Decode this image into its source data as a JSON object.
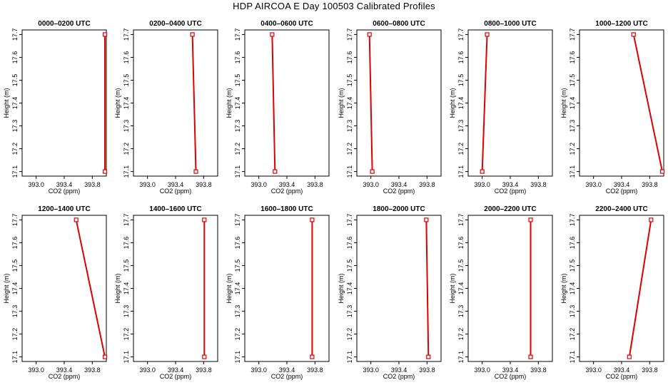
{
  "title": "HDP AIRCOA E  Day 100503  Calibrated Profiles",
  "colors": {
    "series": "#dd0000",
    "axis": "#000000"
  },
  "chart_data": [
    {
      "type": "line",
      "title": "0000–0200 UTC",
      "xlabel": "CO2 (ppm)",
      "ylabel": "Height (m)",
      "xlim": [
        392.8,
        394.0
      ],
      "ylim": [
        17.08,
        17.72
      ],
      "xticks": [
        "393.0",
        "393.4",
        "393.8"
      ],
      "yticks": [
        "17.1",
        "17.2",
        "17.3",
        "17.4",
        "17.5",
        "17.6",
        "17.7"
      ],
      "points": [
        {
          "x": 393.98,
          "y": 17.1
        },
        {
          "x": 393.98,
          "y": 17.7
        }
      ]
    },
    {
      "type": "line",
      "title": "0200–0400 UTC",
      "xlabel": "CO2 (ppm)",
      "ylabel": "Height (m)",
      "xlim": [
        392.8,
        394.0
      ],
      "ylim": [
        17.08,
        17.72
      ],
      "xticks": [
        "393.0",
        "393.4",
        "393.8"
      ],
      "yticks": [
        "17.1",
        "17.2",
        "17.3",
        "17.4",
        "17.5",
        "17.6",
        "17.7"
      ],
      "points": [
        {
          "x": 393.69,
          "y": 17.1
        },
        {
          "x": 393.64,
          "y": 17.7
        }
      ]
    },
    {
      "type": "line",
      "title": "0400–0600 UTC",
      "xlabel": "CO2 (ppm)",
      "ylabel": "Height (m)",
      "xlim": [
        392.8,
        394.0
      ],
      "ylim": [
        17.08,
        17.72
      ],
      "xticks": [
        "393.0",
        "393.4",
        "393.8"
      ],
      "yticks": [
        "17.1",
        "17.2",
        "17.3",
        "17.4",
        "17.5",
        "17.6",
        "17.7"
      ],
      "points": [
        {
          "x": 393.23,
          "y": 17.1
        },
        {
          "x": 393.19,
          "y": 17.7
        }
      ]
    },
    {
      "type": "line",
      "title": "0600–0800 UTC",
      "xlabel": "CO2 (ppm)",
      "ylabel": "Height (m)",
      "xlim": [
        392.8,
        394.0
      ],
      "ylim": [
        17.08,
        17.72
      ],
      "xticks": [
        "393.0",
        "393.4",
        "393.8"
      ],
      "yticks": [
        "17.1",
        "17.2",
        "17.3",
        "17.4",
        "17.5",
        "17.6",
        "17.7"
      ],
      "points": [
        {
          "x": 393.02,
          "y": 17.1
        },
        {
          "x": 392.98,
          "y": 17.7
        }
      ]
    },
    {
      "type": "line",
      "title": "0800–1000 UTC",
      "xlabel": "CO2 (ppm)",
      "ylabel": "Height (m)",
      "xlim": [
        392.8,
        394.0
      ],
      "ylim": [
        17.08,
        17.72
      ],
      "xticks": [
        "393.0",
        "393.4",
        "393.8"
      ],
      "yticks": [
        "17.1",
        "17.2",
        "17.3",
        "17.4",
        "17.5",
        "17.6",
        "17.7"
      ],
      "points": [
        {
          "x": 393.0,
          "y": 17.1
        },
        {
          "x": 393.07,
          "y": 17.7
        }
      ]
    },
    {
      "type": "line",
      "title": "1000–1200 UTC",
      "xlabel": "CO2 (ppm)",
      "ylabel": "Height (m)",
      "xlim": [
        392.8,
        394.0
      ],
      "ylim": [
        17.08,
        17.72
      ],
      "xticks": [
        "393.0",
        "393.4",
        "393.8"
      ],
      "yticks": [
        "17.1",
        "17.2",
        "17.3",
        "17.4",
        "17.5",
        "17.6",
        "17.7"
      ],
      "points": [
        {
          "x": 393.98,
          "y": 17.1
        },
        {
          "x": 393.57,
          "y": 17.7
        }
      ]
    },
    {
      "type": "line",
      "title": "1200–1400 UTC",
      "xlabel": "CO2 (ppm)",
      "ylabel": "Height (m)",
      "xlim": [
        392.8,
        394.0
      ],
      "ylim": [
        17.08,
        17.72
      ],
      "xticks": [
        "393.0",
        "393.4",
        "393.8"
      ],
      "yticks": [
        "17.1",
        "17.2",
        "17.3",
        "17.4",
        "17.5",
        "17.6",
        "17.7"
      ],
      "points": [
        {
          "x": 393.98,
          "y": 17.1
        },
        {
          "x": 393.57,
          "y": 17.7
        }
      ]
    },
    {
      "type": "line",
      "title": "1400–1600 UTC",
      "xlabel": "CO2 (ppm)",
      "ylabel": "Height (m)",
      "xlim": [
        392.8,
        394.0
      ],
      "ylim": [
        17.08,
        17.72
      ],
      "xticks": [
        "393.0",
        "393.4",
        "393.8"
      ],
      "yticks": [
        "17.1",
        "17.2",
        "17.3",
        "17.4",
        "17.5",
        "17.6",
        "17.7"
      ],
      "points": [
        {
          "x": 393.81,
          "y": 17.1
        },
        {
          "x": 393.81,
          "y": 17.7
        }
      ]
    },
    {
      "type": "line",
      "title": "1600–1800 UTC",
      "xlabel": "CO2 (ppm)",
      "ylabel": "Height (m)",
      "xlim": [
        392.8,
        394.0
      ],
      "ylim": [
        17.08,
        17.72
      ],
      "xticks": [
        "393.0",
        "393.4",
        "393.8"
      ],
      "yticks": [
        "17.1",
        "17.2",
        "17.3",
        "17.4",
        "17.5",
        "17.6",
        "17.7"
      ],
      "points": [
        {
          "x": 393.76,
          "y": 17.1
        },
        {
          "x": 393.76,
          "y": 17.7
        }
      ]
    },
    {
      "type": "line",
      "title": "1800–2000 UTC",
      "xlabel": "CO2 (ppm)",
      "ylabel": "Height (m)",
      "xlim": [
        392.8,
        394.0
      ],
      "ylim": [
        17.08,
        17.72
      ],
      "xticks": [
        "393.0",
        "393.4",
        "393.8"
      ],
      "yticks": [
        "17.1",
        "17.2",
        "17.3",
        "17.4",
        "17.5",
        "17.6",
        "17.7"
      ],
      "points": [
        {
          "x": 393.82,
          "y": 17.1
        },
        {
          "x": 393.79,
          "y": 17.7
        }
      ]
    },
    {
      "type": "line",
      "title": "2000–2200 UTC",
      "xlabel": "CO2 (ppm)",
      "ylabel": "Height (m)",
      "xlim": [
        392.8,
        394.0
      ],
      "ylim": [
        17.08,
        17.72
      ],
      "xticks": [
        "393.0",
        "393.4",
        "393.8"
      ],
      "yticks": [
        "17.1",
        "17.2",
        "17.3",
        "17.4",
        "17.5",
        "17.6",
        "17.7"
      ],
      "points": [
        {
          "x": 393.69,
          "y": 17.1
        },
        {
          "x": 393.69,
          "y": 17.7
        }
      ]
    },
    {
      "type": "line",
      "title": "2200–2400 UTC",
      "xlabel": "CO2 (ppm)",
      "ylabel": "Height (m)",
      "xlim": [
        392.8,
        394.0
      ],
      "ylim": [
        17.08,
        17.72
      ],
      "xticks": [
        "393.0",
        "393.4",
        "393.8"
      ],
      "yticks": [
        "17.1",
        "17.2",
        "17.3",
        "17.4",
        "17.5",
        "17.6",
        "17.7"
      ],
      "points": [
        {
          "x": 393.51,
          "y": 17.1
        },
        {
          "x": 393.82,
          "y": 17.7
        }
      ]
    }
  ]
}
